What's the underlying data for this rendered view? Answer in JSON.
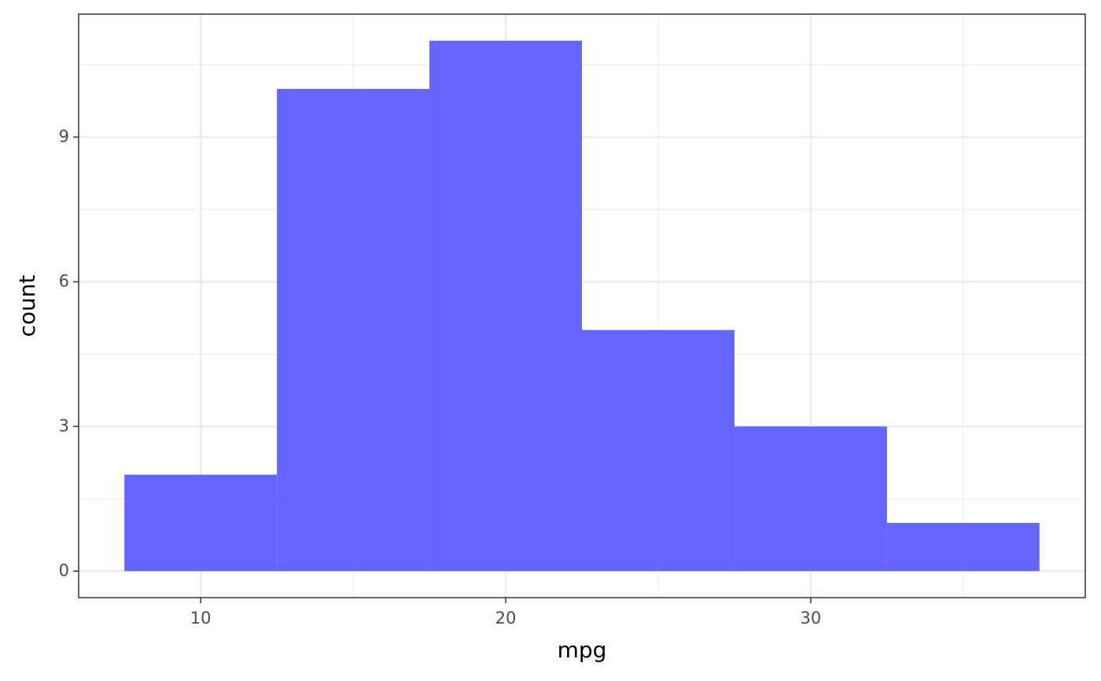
{
  "chart_data": {
    "type": "histogram",
    "x_label": "mpg",
    "y_label": "count",
    "bins": [
      7.5,
      12.5,
      17.5,
      22.5,
      27.5,
      32.5,
      37.5
    ],
    "counts": [
      2,
      10,
      11,
      5,
      3,
      1
    ],
    "color": "#6666ff",
    "xlim": [
      6,
      39
    ],
    "xticks": [
      10,
      20,
      30
    ],
    "ylim": [
      -0.55,
      11.55
    ],
    "yticks": [
      0,
      3,
      6,
      9
    ],
    "grid": true
  }
}
